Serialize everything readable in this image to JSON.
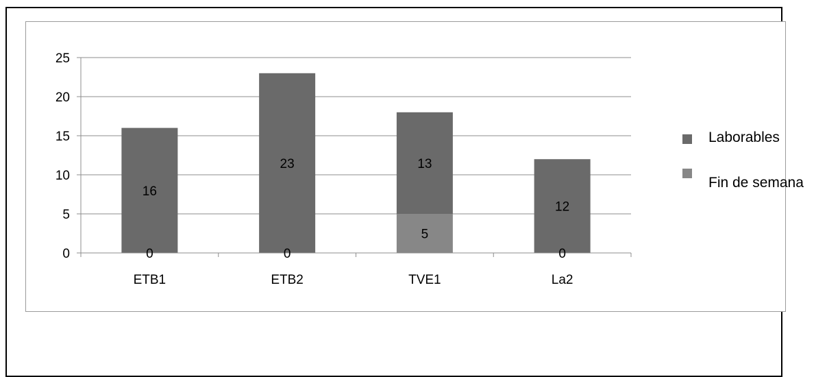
{
  "chart_data": {
    "type": "bar",
    "stacked": true,
    "categories": [
      "ETB1",
      "ETB2",
      "TVE1",
      "La2"
    ],
    "series": [
      {
        "name": "Fin de semana",
        "values": [
          0,
          0,
          5,
          0
        ],
        "color": "#878787"
      },
      {
        "name": "Laborables",
        "values": [
          16,
          23,
          13,
          12
        ],
        "color": "#6a6a6a"
      }
    ],
    "ylim": [
      0,
      25
    ],
    "yticks": [
      "0",
      "5",
      "10",
      "15",
      "20",
      "25"
    ],
    "grid": true,
    "legend_position": "right",
    "legend_order": [
      "Laborables",
      "Fin de semana"
    ]
  }
}
